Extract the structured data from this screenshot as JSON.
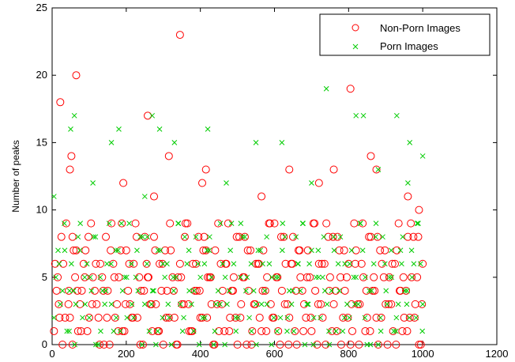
{
  "chart_data": {
    "type": "scatter",
    "title": "",
    "xlabel": "",
    "ylabel": "Number of peaks",
    "xlim": [
      0,
      1200
    ],
    "ylim": [
      0,
      25
    ],
    "xticks": [
      "0",
      "200",
      "400",
      "600",
      "800",
      "1000",
      "1200"
    ],
    "yticks": [
      "0",
      "5",
      "10",
      "15",
      "20",
      "25"
    ],
    "grid": false,
    "legend_position": "top-right",
    "series": [
      {
        "name": "Non-Porn Images",
        "marker": "circle",
        "color": "#ff0000",
        "x": [
          12,
          20,
          30,
          44,
          55,
          62,
          70,
          80,
          90,
          100,
          110,
          120,
          130,
          140,
          150,
          160,
          170,
          180,
          190,
          200,
          210,
          220,
          230,
          240,
          250,
          260,
          270,
          280,
          290,
          300,
          310,
          320,
          330,
          340,
          350,
          360,
          370,
          380,
          390,
          400,
          410,
          420,
          430,
          440,
          450,
          460,
          470,
          480,
          490,
          500,
          510,
          520,
          530,
          540,
          550,
          560,
          570,
          580,
          590,
          600,
          610,
          620,
          630,
          640,
          650,
          660,
          670,
          680,
          690,
          700,
          710,
          720,
          730,
          740,
          750,
          760,
          770,
          780,
          790,
          800,
          810,
          820,
          830,
          840,
          850,
          860,
          870,
          880,
          890,
          900,
          910,
          920,
          930,
          940,
          950,
          960,
          970,
          980,
          990,
          1000,
          8,
          18,
          28,
          38,
          48,
          58,
          68,
          78,
          88,
          98,
          108,
          118,
          128,
          138,
          148,
          158,
          168,
          178,
          188,
          198,
          208,
          218,
          228,
          238,
          248,
          258,
          268,
          278,
          288,
          298,
          308,
          318,
          328,
          338,
          348,
          358,
          368,
          378,
          388,
          398,
          408,
          418,
          428,
          438,
          448,
          458,
          468,
          478,
          488,
          498,
          508,
          518,
          528,
          538,
          548,
          558,
          568,
          578,
          588,
          598,
          608,
          618,
          628,
          638,
          648,
          658,
          668,
          678,
          688,
          698,
          708,
          718,
          728,
          738,
          748,
          758,
          768,
          778,
          788,
          798,
          808,
          818,
          828,
          838,
          848,
          858,
          868,
          878,
          888,
          898,
          908,
          918,
          928,
          938,
          948,
          958,
          968,
          978,
          988,
          998,
          5,
          15,
          25,
          35,
          45,
          55,
          65,
          75,
          85,
          95,
          105,
          115,
          125,
          135,
          145,
          155,
          165,
          175,
          185,
          195,
          205,
          215,
          225,
          235,
          245,
          255,
          265,
          275,
          285,
          295,
          305,
          315,
          325,
          335,
          345,
          355,
          365,
          375,
          385,
          395,
          405,
          415,
          425,
          435,
          445,
          455,
          465,
          475,
          485,
          495,
          505,
          515,
          525,
          535,
          545,
          555,
          565,
          575,
          585,
          595,
          605,
          615,
          625,
          635,
          645,
          655,
          665,
          675,
          685,
          695,
          705,
          715,
          725,
          735,
          745,
          755,
          765,
          775,
          785,
          795,
          805,
          815,
          825,
          835,
          845,
          855,
          865,
          875,
          885,
          895,
          905,
          915,
          925,
          935,
          945,
          955,
          965,
          975,
          985,
          995,
          22,
          65,
          258,
          345,
          805,
          52,
          315,
          415,
          760,
          860,
          48,
          192,
          275,
          405,
          565,
          640,
          720,
          875,
          960,
          990
        ],
        "y": [
          4,
          2,
          6,
          3,
          8,
          5,
          1,
          4,
          7,
          2,
          5,
          3,
          6,
          0,
          4,
          9,
          2,
          5,
          1,
          7,
          3,
          6,
          2,
          4,
          8,
          5,
          1,
          3,
          6,
          0,
          4,
          7,
          2,
          5,
          3,
          9,
          1,
          6,
          4,
          2,
          8,
          5,
          3,
          7,
          1,
          4,
          6,
          2,
          5,
          0,
          3,
          8,
          4,
          1,
          6,
          2,
          7,
          5,
          3,
          9,
          1,
          4,
          6,
          2,
          8,
          0,
          5,
          3,
          7,
          1,
          4,
          6,
          2,
          9,
          5,
          3,
          8,
          0,
          4,
          6,
          1,
          7,
          3,
          5,
          2,
          8,
          4,
          0,
          6,
          3,
          5,
          1,
          7,
          4,
          2,
          8,
          5,
          3,
          0,
          6,
          6,
          3,
          0,
          9,
          2,
          7,
          4,
          1,
          5,
          8,
          3,
          6,
          0,
          4,
          2,
          7,
          5,
          1,
          9,
          3,
          6,
          2,
          8,
          0,
          4,
          5,
          3,
          7,
          1,
          6,
          2,
          9,
          4,
          0,
          5,
          8,
          3,
          1,
          6,
          4,
          7,
          2,
          5,
          0,
          9,
          3,
          6,
          1,
          4,
          8,
          2,
          5,
          7,
          0,
          3,
          6,
          4,
          1,
          9,
          2,
          5,
          8,
          3,
          0,
          6,
          4,
          7,
          1,
          5,
          2,
          9,
          3,
          6,
          0,
          4,
          8,
          1,
          5,
          7,
          2,
          3,
          6,
          0,
          9,
          4,
          1,
          5,
          8,
          2,
          7,
          3,
          6,
          0,
          4,
          5,
          1,
          9,
          2,
          8,
          3,
          1,
          5,
          8,
          2,
          4,
          0,
          7,
          3,
          6,
          1,
          9,
          4,
          2,
          5,
          8,
          0,
          6,
          3,
          7,
          1,
          4,
          2,
          9,
          5,
          0,
          6,
          3,
          8,
          1,
          4,
          7,
          2,
          5,
          0,
          6,
          3,
          9,
          1,
          4,
          8,
          2,
          7,
          5,
          0,
          3,
          6,
          1,
          9,
          4,
          2,
          8,
          5,
          0,
          7,
          3,
          6,
          1,
          4,
          9,
          2,
          5,
          0,
          8,
          3,
          6,
          1,
          7,
          4,
          2,
          5,
          9,
          0,
          3,
          6,
          8,
          1,
          4,
          7,
          2,
          5,
          0,
          9,
          3,
          6,
          1,
          8,
          4,
          2,
          7,
          5,
          0,
          3,
          6,
          9,
          1,
          4,
          2,
          8,
          5,
          0,
          18,
          20,
          17,
          23,
          19,
          14,
          14,
          13,
          13,
          14,
          13,
          12,
          11,
          12,
          11,
          13,
          12,
          13,
          11,
          10
        ]
      },
      {
        "name": "Porn Images",
        "marker": "x",
        "color": "#00cc00",
        "x": [
          10,
          22,
          34,
          46,
          58,
          70,
          82,
          94,
          106,
          118,
          130,
          142,
          154,
          166,
          178,
          190,
          202,
          214,
          226,
          238,
          250,
          262,
          274,
          286,
          298,
          310,
          322,
          334,
          346,
          358,
          370,
          382,
          394,
          406,
          418,
          430,
          442,
          454,
          466,
          478,
          490,
          502,
          514,
          526,
          538,
          550,
          562,
          574,
          586,
          598,
          610,
          622,
          634,
          646,
          658,
          670,
          682,
          694,
          706,
          718,
          730,
          742,
          754,
          766,
          778,
          790,
          802,
          814,
          826,
          838,
          850,
          862,
          874,
          886,
          898,
          910,
          922,
          934,
          946,
          958,
          970,
          982,
          994,
          16,
          28,
          40,
          52,
          64,
          76,
          88,
          100,
          112,
          124,
          136,
          148,
          160,
          172,
          184,
          196,
          208,
          220,
          232,
          244,
          256,
          268,
          280,
          292,
          304,
          316,
          328,
          340,
          352,
          364,
          376,
          388,
          400,
          412,
          424,
          436,
          448,
          460,
          472,
          484,
          496,
          508,
          520,
          532,
          544,
          556,
          568,
          580,
          592,
          604,
          616,
          628,
          640,
          652,
          664,
          676,
          688,
          700,
          712,
          724,
          736,
          748,
          760,
          772,
          784,
          796,
          808,
          820,
          832,
          844,
          856,
          868,
          880,
          892,
          904,
          916,
          928,
          940,
          952,
          964,
          976,
          988,
          1000,
          5,
          19,
          33,
          47,
          61,
          75,
          89,
          103,
          117,
          131,
          145,
          159,
          173,
          187,
          201,
          215,
          229,
          243,
          257,
          271,
          285,
          299,
          313,
          327,
          341,
          355,
          369,
          383,
          397,
          411,
          425,
          439,
          453,
          467,
          481,
          495,
          509,
          523,
          537,
          551,
          565,
          579,
          593,
          607,
          621,
          635,
          649,
          663,
          677,
          691,
          705,
          719,
          733,
          747,
          761,
          775,
          789,
          803,
          817,
          831,
          845,
          859,
          873,
          887,
          901,
          915,
          929,
          943,
          957,
          971,
          985,
          999,
          50,
          60,
          160,
          180,
          270,
          290,
          330,
          420,
          550,
          620,
          740,
          820,
          840,
          930,
          965,
          1000,
          5,
          110,
          250,
          470,
          700,
          880,
          960
        ],
        "y": [
          5,
          3,
          7,
          1,
          4,
          8,
          2,
          6,
          4,
          0,
          5,
          3,
          9,
          1,
          7,
          4,
          2,
          6,
          5,
          8,
          3,
          1,
          4,
          7,
          2,
          6,
          0,
          5,
          3,
          8,
          4,
          1,
          6,
          2,
          7,
          5,
          3,
          9,
          0,
          4,
          6,
          2,
          8,
          5,
          1,
          3,
          7,
          4,
          6,
          2,
          5,
          9,
          1,
          3,
          8,
          4,
          0,
          6,
          2,
          7,
          5,
          3,
          4,
          1,
          8,
          6,
          2,
          5,
          3,
          7,
          0,
          4,
          9,
          2,
          6,
          5,
          1,
          3,
          8,
          4,
          7,
          2,
          6,
          7,
          4,
          1,
          6,
          3,
          9,
          5,
          2,
          8,
          0,
          4,
          6,
          3,
          7,
          1,
          5,
          9,
          2,
          4,
          8,
          6,
          3,
          0,
          7,
          5,
          2,
          4,
          9,
          1,
          6,
          3,
          8,
          5,
          2,
          7,
          0,
          4,
          6,
          3,
          9,
          1,
          5,
          8,
          2,
          4,
          7,
          6,
          3,
          0,
          5,
          2,
          8,
          4,
          1,
          6,
          9,
          3,
          7,
          5,
          2,
          4,
          0,
          8,
          6,
          1,
          3,
          7,
          5,
          9,
          2,
          4,
          6,
          0,
          8,
          3,
          5,
          1,
          7,
          4,
          2,
          6,
          9,
          3,
          2,
          6,
          9,
          4,
          0,
          7,
          3,
          5,
          8,
          1,
          4,
          6,
          2,
          9,
          5,
          3,
          7,
          0,
          8,
          4,
          1,
          6,
          3,
          5,
          9,
          2,
          7,
          4,
          0,
          6,
          8,
          1,
          3,
          5,
          7,
          2,
          9,
          4,
          6,
          0,
          3,
          8,
          5,
          1,
          7,
          2,
          4,
          6,
          9,
          3,
          0,
          5,
          8,
          1,
          7,
          4,
          2,
          6,
          3,
          9,
          5,
          0,
          8,
          1,
          4,
          7,
          2,
          6,
          3,
          5,
          9,
          1,
          16,
          17,
          15,
          16,
          17,
          16,
          15,
          16,
          15,
          15,
          19,
          17,
          17,
          17,
          15,
          14,
          11,
          12,
          11,
          12,
          12,
          13,
          12
        ]
      }
    ]
  }
}
